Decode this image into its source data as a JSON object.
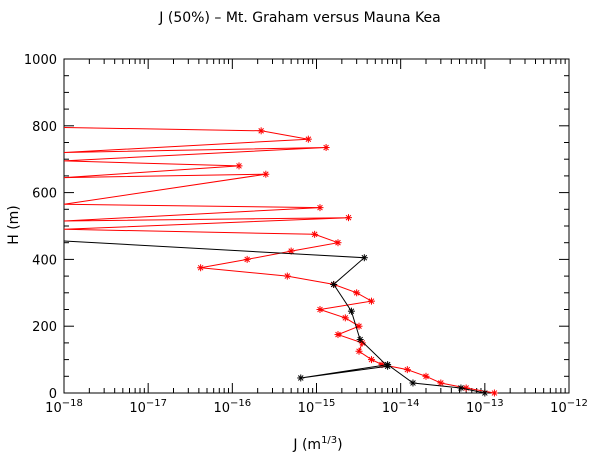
{
  "chart_data": {
    "type": "line",
    "title": "J (50%) – Mt. Graham versus Mauna Kea",
    "xlabel_main": "J (m",
    "xlabel_exp": "1/3",
    "xlabel_close": ")",
    "ylabel": "H (m)",
    "x_scale": "log",
    "xlim": [
      1e-18,
      1e-12
    ],
    "ylim": [
      0,
      1000
    ],
    "x_ticks": [
      {
        "value": 1e-18,
        "base": "10",
        "exp": "−18"
      },
      {
        "value": 1e-17,
        "base": "10",
        "exp": "−17"
      },
      {
        "value": 1e-16,
        "base": "10",
        "exp": "−16"
      },
      {
        "value": 1e-15,
        "base": "10",
        "exp": "−15"
      },
      {
        "value": 1e-14,
        "base": "10",
        "exp": "−14"
      },
      {
        "value": 1e-13,
        "base": "10",
        "exp": "−13"
      },
      {
        "value": 1e-12,
        "base": "10",
        "exp": "−12"
      }
    ],
    "y_ticks": [
      "0",
      "200",
      "400",
      "600",
      "800",
      "1000"
    ],
    "grid": false,
    "series": [
      {
        "color": "#ff0000",
        "marker": "asterisk",
        "points": [
          {
            "x": 1.3e-13,
            "y": 0
          },
          {
            "x": 6e-14,
            "y": 15
          },
          {
            "x": 3e-14,
            "y": 30
          },
          {
            "x": 2e-14,
            "y": 50
          },
          {
            "x": 1.2e-14,
            "y": 70
          },
          {
            "x": 6e-15,
            "y": 85
          },
          {
            "x": 4.5e-15,
            "y": 100
          },
          {
            "x": 3.2e-15,
            "y": 125
          },
          {
            "x": 3.5e-15,
            "y": 150
          },
          {
            "x": 1.8e-15,
            "y": 175
          },
          {
            "x": 3.2e-15,
            "y": 200
          },
          {
            "x": 2.2e-15,
            "y": 225
          },
          {
            "x": 1.1e-15,
            "y": 250
          },
          {
            "x": 4.5e-15,
            "y": 275
          },
          {
            "x": 3e-15,
            "y": 300
          },
          {
            "x": 1.6e-15,
            "y": 325
          },
          {
            "x": 4.5e-16,
            "y": 350
          },
          {
            "x": 4.2e-17,
            "y": 375
          },
          {
            "x": 1.5e-16,
            "y": 400
          },
          {
            "x": 5e-16,
            "y": 425
          },
          {
            "x": 1.8e-15,
            "y": 450
          },
          {
            "x": 9.5e-16,
            "y": 475
          },
          {
            "x": 1e-18,
            "y": 490
          },
          {
            "x": 2.4e-15,
            "y": 525
          },
          {
            "x": 1e-18,
            "y": 515
          },
          {
            "x": 1.1e-15,
            "y": 555
          },
          {
            "x": 1e-18,
            "y": 565
          },
          {
            "x": 2.5e-16,
            "y": 655
          },
          {
            "x": 1e-18,
            "y": 645
          },
          {
            "x": 1.2e-16,
            "y": 680
          },
          {
            "x": 1e-18,
            "y": 695
          },
          {
            "x": 1.3e-15,
            "y": 735
          },
          {
            "x": 1e-18,
            "y": 720
          },
          {
            "x": 8e-16,
            "y": 760
          },
          {
            "x": 2.2e-16,
            "y": 785
          },
          {
            "x": 1e-18,
            "y": 795
          }
        ]
      },
      {
        "color": "#000000",
        "marker": "asterisk",
        "points": [
          {
            "x": 1e-13,
            "y": 0
          },
          {
            "x": 5.2e-14,
            "y": 15
          },
          {
            "x": 1.4e-14,
            "y": 30
          },
          {
            "x": 7e-15,
            "y": 85
          },
          {
            "x": 6.5e-16,
            "y": 45
          },
          {
            "x": 7e-15,
            "y": 80
          },
          {
            "x": 3.3e-15,
            "y": 160
          },
          {
            "x": 2.6e-15,
            "y": 245
          },
          {
            "x": 1.6e-15,
            "y": 325
          },
          {
            "x": 3.7e-15,
            "y": 405
          },
          {
            "x": 1e-18,
            "y": 455
          }
        ]
      }
    ]
  }
}
